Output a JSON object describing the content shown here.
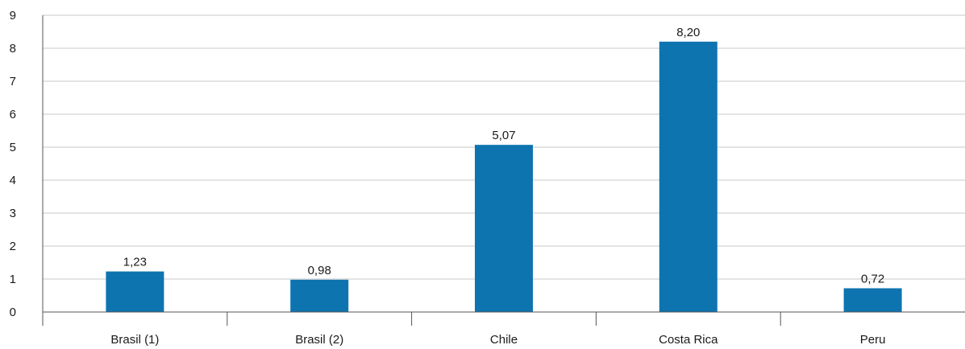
{
  "chart_data": {
    "type": "bar",
    "categories": [
      "Brasil (1)",
      "Brasil (2)",
      "Chile",
      "Costa Rica",
      "Peru"
    ],
    "values": [
      1.23,
      0.98,
      5.07,
      8.2,
      0.72
    ],
    "value_labels": [
      "1,23",
      "0,98",
      "5,07",
      "8,20",
      "0,72"
    ],
    "title": "",
    "xlabel": "",
    "ylabel": "",
    "ylim": [
      0,
      9
    ],
    "yticks": [
      "0",
      "1",
      "2",
      "3",
      "4",
      "5",
      "6",
      "7",
      "8",
      "9"
    ],
    "grid": true,
    "legend": "none",
    "bar_color": "#0e74b0"
  }
}
